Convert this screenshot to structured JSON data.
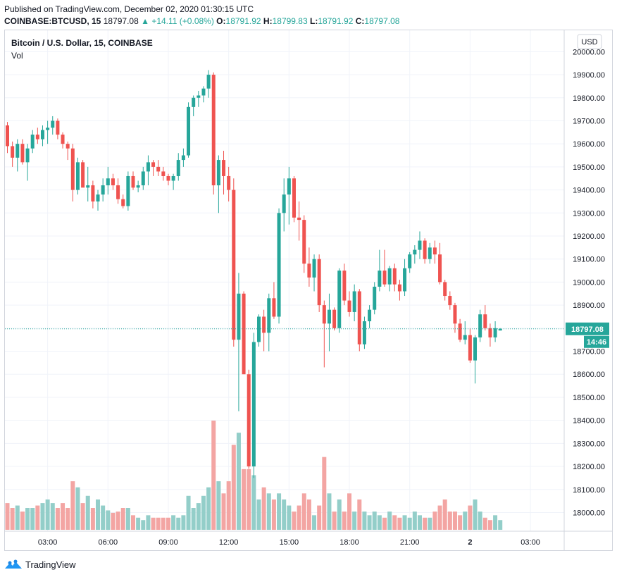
{
  "header": {
    "published": "Published on TradingView.com, December 02, 2020 01:30:15 UTC",
    "symbol": "COINBASE:BTCUSD, 15",
    "last": "18797.08",
    "change": "▲ +14.11 (+0.08%)",
    "o_label": "O:",
    "o_val": "18791.92",
    "h_label": "H:",
    "h_val": "18799.83",
    "l_label": "L:",
    "l_val": "18791.92",
    "c_label": "C:",
    "c_val": "18797.08"
  },
  "legend": {
    "title": "Bitcoin / U.S. Dollar, 15, COINBASE",
    "vol": "Vol"
  },
  "currency": "USD",
  "price_tag": "18797.08",
  "countdown": "14:46",
  "footer": {
    "brand": "TradingView"
  },
  "colors": {
    "up": "#26a69a",
    "down": "#ef5350",
    "up_vol": "#93cec9",
    "down_vol": "#f3a5a3"
  },
  "chart_data": {
    "type": "candlestick",
    "title": "Bitcoin / U.S. Dollar, 15, COINBASE",
    "ylim": [
      17925,
      20050
    ],
    "y_ticks": [
      18000,
      18100,
      18200,
      18300,
      18400,
      18500,
      18600,
      18700,
      18800,
      18900,
      19000,
      19100,
      19200,
      19300,
      19400,
      19500,
      19600,
      19700,
      19800,
      19900,
      20000
    ],
    "x_ticks": [
      "03:00",
      "06:00",
      "09:00",
      "12:00",
      "15:00",
      "18:00",
      "21:00",
      "2",
      "03:00"
    ],
    "x_tick_index": [
      8,
      20,
      32,
      44,
      56,
      68,
      80,
      92,
      104
    ],
    "last_price": 18797.08,
    "candles": [
      [
        19680,
        19695,
        19560,
        19590,
        22
      ],
      [
        19590,
        19610,
        19500,
        19540,
        18
      ],
      [
        19540,
        19620,
        19480,
        19600,
        20
      ],
      [
        19600,
        19620,
        19510,
        19520,
        15
      ],
      [
        19520,
        19600,
        19440,
        19580,
        18
      ],
      [
        19580,
        19660,
        19560,
        19640,
        18
      ],
      [
        19640,
        19670,
        19600,
        19620,
        20
      ],
      [
        19620,
        19680,
        19590,
        19660,
        22
      ],
      [
        19660,
        19700,
        19600,
        19670,
        25
      ],
      [
        19670,
        19720,
        19640,
        19700,
        22
      ],
      [
        19700,
        19710,
        19620,
        19640,
        18
      ],
      [
        19640,
        19650,
        19580,
        19600,
        22
      ],
      [
        19600,
        19610,
        19530,
        19580,
        18
      ],
      [
        19580,
        19600,
        19350,
        19400,
        40
      ],
      [
        19400,
        19540,
        19380,
        19520,
        35
      ],
      [
        19520,
        19530,
        19420,
        19410,
        22
      ],
      [
        19410,
        19500,
        19350,
        19420,
        28
      ],
      [
        19420,
        19440,
        19320,
        19350,
        18
      ],
      [
        19350,
        19400,
        19310,
        19380,
        25
      ],
      [
        19380,
        19450,
        19350,
        19420,
        20
      ],
      [
        19420,
        19500,
        19380,
        19450,
        16
      ],
      [
        19450,
        19470,
        19400,
        19420,
        14
      ],
      [
        19420,
        19450,
        19340,
        19360,
        15
      ],
      [
        19360,
        19380,
        19320,
        19330,
        18
      ],
      [
        19330,
        19480,
        19310,
        19460,
        18
      ],
      [
        19460,
        19480,
        19400,
        19410,
        12
      ],
      [
        19410,
        19440,
        19390,
        19420,
        10
      ],
      [
        19420,
        19500,
        19400,
        19480,
        8
      ],
      [
        19480,
        19550,
        19420,
        19520,
        12
      ],
      [
        19520,
        19530,
        19460,
        19500,
        10
      ],
      [
        19500,
        19530,
        19460,
        19480,
        10
      ],
      [
        19480,
        19500,
        19440,
        19460,
        10
      ],
      [
        19460,
        19470,
        19420,
        19440,
        10
      ],
      [
        19440,
        19470,
        19400,
        19460,
        12
      ],
      [
        19460,
        19560,
        19440,
        19530,
        10
      ],
      [
        19530,
        19580,
        19500,
        19550,
        12
      ],
      [
        19550,
        19780,
        19540,
        19760,
        28
      ],
      [
        19760,
        19810,
        19720,
        19800,
        18
      ],
      [
        19800,
        19830,
        19760,
        19810,
        22
      ],
      [
        19810,
        19850,
        19780,
        19840,
        28
      ],
      [
        19840,
        19920,
        19800,
        19900,
        35
      ],
      [
        19900,
        19910,
        19380,
        19420,
        90
      ],
      [
        19420,
        19550,
        19300,
        19530,
        40
      ],
      [
        19530,
        19570,
        19380,
        19460,
        30
      ],
      [
        19460,
        19500,
        19350,
        19400,
        40
      ],
      [
        19400,
        19450,
        18720,
        18750,
        70
      ],
      [
        18750,
        19040,
        18440,
        18950,
        80
      ],
      [
        18950,
        18960,
        18620,
        18600,
        50
      ],
      [
        18600,
        18620,
        18190,
        18200,
        50
      ],
      [
        18200,
        18780,
        18150,
        18740,
        45
      ],
      [
        18740,
        18860,
        18720,
        18850,
        25
      ],
      [
        18850,
        18880,
        18700,
        18780,
        35
      ],
      [
        18780,
        18950,
        18700,
        18930,
        30
      ],
      [
        18930,
        19000,
        18840,
        18850,
        25
      ],
      [
        18850,
        19320,
        18820,
        19300,
        30
      ],
      [
        19300,
        19450,
        19220,
        19380,
        25
      ],
      [
        19380,
        19500,
        19250,
        19450,
        20
      ],
      [
        19450,
        19460,
        19260,
        19280,
        15
      ],
      [
        19280,
        19350,
        19180,
        19270,
        20
      ],
      [
        19270,
        19290,
        19040,
        19080,
        30
      ],
      [
        19080,
        19150,
        18980,
        19020,
        25
      ],
      [
        19020,
        19120,
        18960,
        19100,
        12
      ],
      [
        19100,
        19120,
        18870,
        18900,
        20
      ],
      [
        18900,
        18920,
        18630,
        18820,
        60
      ],
      [
        18820,
        18950,
        18700,
        18880,
        30
      ],
      [
        18880,
        18890,
        18790,
        18800,
        15
      ],
      [
        18800,
        19060,
        18780,
        19050,
        25
      ],
      [
        19050,
        19080,
        18900,
        18920,
        15
      ],
      [
        18920,
        18960,
        18850,
        18870,
        30
      ],
      [
        18870,
        18990,
        18830,
        18960,
        15
      ],
      [
        18960,
        18970,
        18700,
        18730,
        25
      ],
      [
        18730,
        18850,
        18710,
        18830,
        15
      ],
      [
        18830,
        18900,
        18800,
        18880,
        12
      ],
      [
        18880,
        19000,
        18860,
        18980,
        15
      ],
      [
        18980,
        19140,
        18960,
        19050,
        12
      ],
      [
        19050,
        19140,
        18980,
        18990,
        10
      ],
      [
        18990,
        19070,
        18960,
        19060,
        15
      ],
      [
        19060,
        19080,
        18960,
        18990,
        12
      ],
      [
        18990,
        19010,
        18920,
        18960,
        10
      ],
      [
        18960,
        19100,
        18940,
        19060,
        12
      ],
      [
        19060,
        19130,
        19040,
        19120,
        10
      ],
      [
        19120,
        19160,
        19080,
        19140,
        15
      ],
      [
        19140,
        19220,
        19100,
        19180,
        12
      ],
      [
        19180,
        19190,
        19080,
        19100,
        10
      ],
      [
        19100,
        19170,
        19080,
        19150,
        10
      ],
      [
        19150,
        19180,
        19080,
        19120,
        15
      ],
      [
        19120,
        19170,
        18990,
        19000,
        20
      ],
      [
        19000,
        19010,
        18920,
        18940,
        25
      ],
      [
        18940,
        18960,
        18880,
        18900,
        15
      ],
      [
        18900,
        18910,
        18780,
        18820,
        15
      ],
      [
        18820,
        18840,
        18740,
        18750,
        12
      ],
      [
        18750,
        18830,
        18730,
        18770,
        15
      ],
      [
        18770,
        18800,
        18650,
        18660,
        20
      ],
      [
        18660,
        18770,
        18560,
        18760,
        25
      ],
      [
        18760,
        18880,
        18740,
        18860,
        15
      ],
      [
        18860,
        18900,
        18790,
        18800,
        10
      ],
      [
        18800,
        18820,
        18720,
        18760,
        8
      ],
      [
        18760,
        18830,
        18740,
        18800,
        12
      ],
      [
        18790,
        18800,
        18790,
        18797,
        8
      ]
    ]
  }
}
